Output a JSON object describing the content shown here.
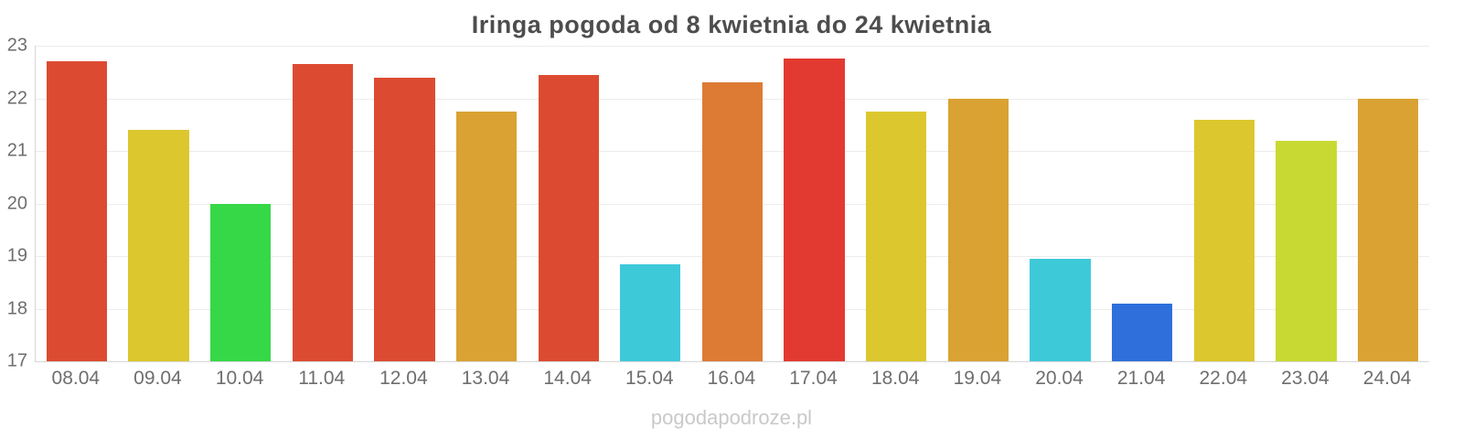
{
  "title": "Iringa pogoda od 8 kwietnia do 24 kwietnia",
  "watermark": "pogodapodroze.pl",
  "chart_data": {
    "type": "bar",
    "title": "Iringa pogoda od 8 kwietnia do 24 kwietnia",
    "categories": [
      "08.04",
      "09.04",
      "10.04",
      "11.04",
      "12.04",
      "13.04",
      "14.04",
      "15.04",
      "16.04",
      "17.04",
      "18.04",
      "19.04",
      "20.04",
      "21.04",
      "22.04",
      "23.04",
      "24.04"
    ],
    "values": [
      22.7,
      21.4,
      20.0,
      22.65,
      22.4,
      21.75,
      22.45,
      18.85,
      22.3,
      22.75,
      21.75,
      22.0,
      18.95,
      18.1,
      21.6,
      21.2,
      22.0
    ],
    "bar_colors": [
      "#dc4b31",
      "#dcc72f",
      "#36d847",
      "#dc4b31",
      "#dc4b31",
      "#d9a233",
      "#dc4b31",
      "#3ec9d9",
      "#dd7b35",
      "#e23a30",
      "#dcc72f",
      "#d9a233",
      "#3ec9d9",
      "#2e6fdc",
      "#dcc72f",
      "#c9d934",
      "#d9a233"
    ],
    "xlabel": "",
    "ylabel": "",
    "ylim": [
      17,
      23
    ],
    "yticks": [
      17,
      18,
      19,
      20,
      21,
      22,
      23
    ],
    "grid": true,
    "legend": false
  }
}
